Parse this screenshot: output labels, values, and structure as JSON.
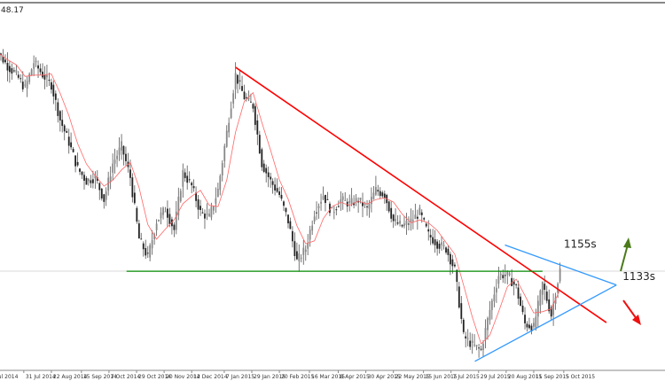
{
  "corner_label": "48.17",
  "colors": {
    "candle": "#222222",
    "wick": "#555555",
    "moving_average": "#ff6666",
    "downtrend": "#ff0000",
    "triangle": "#3399ff",
    "support": "#008800",
    "arrow_up": "#4a7a1a",
    "arrow_down": "#ee1111"
  },
  "chart_data": {
    "type": "candlestick",
    "title": "",
    "xlabel": "",
    "ylabel": "",
    "xlim": [
      "2014-07-12",
      "2015-11-25"
    ],
    "ylim": [
      1073,
      1355
    ],
    "grid": false,
    "x_tick_labels": [
      {
        "date": "2014-07-09",
        "label": "ul 2014"
      },
      {
        "date": "2014-07-31",
        "label": "31 Jul 2014"
      },
      {
        "date": "2014-08-22",
        "label": "22 Aug 2014"
      },
      {
        "date": "2014-09-15",
        "label": "15 Sep 2014"
      },
      {
        "date": "2014-10-07",
        "label": "7 Oct 2014"
      },
      {
        "date": "2014-10-29",
        "label": "29 Oct 2014"
      },
      {
        "date": "2014-11-20",
        "label": "20 Nov 2014"
      },
      {
        "date": "2014-12-12",
        "label": "12 Dec 2014"
      },
      {
        "date": "2015-01-07",
        "label": "7 Jan 2015"
      },
      {
        "date": "2015-01-29",
        "label": "29 Jan 2015"
      },
      {
        "date": "2015-02-20",
        "label": "20 Feb 2015"
      },
      {
        "date": "2015-03-16",
        "label": "16 Mar 2015"
      },
      {
        "date": "2015-04-08",
        "label": "8 Apr 2015"
      },
      {
        "date": "2015-04-30",
        "label": "30 Apr 2015"
      },
      {
        "date": "2015-05-22",
        "label": "22 May 2015"
      },
      {
        "date": "2015-06-15",
        "label": "15 Jun 2015"
      },
      {
        "date": "2015-07-07",
        "label": "7 Jul 2015"
      },
      {
        "date": "2015-07-29",
        "label": "29 Jul 2015"
      },
      {
        "date": "2015-08-20",
        "label": "20 Aug 2015"
      },
      {
        "date": "2015-09-11",
        "label": "11 Sep 2015"
      },
      {
        "date": "2015-10-05",
        "label": "5 Oct 2015"
      }
    ],
    "series": [
      {
        "dates": [
          "2014-07-11",
          "2014-07-18",
          "2014-07-25",
          "2014-08-01",
          "2014-08-08",
          "2014-08-15",
          "2014-08-22",
          "2014-08-29",
          "2014-09-05",
          "2014-09-12",
          "2014-09-19",
          "2014-09-26",
          "2014-10-03",
          "2014-10-10",
          "2014-10-17",
          "2014-10-24",
          "2014-10-31",
          "2014-11-07",
          "2014-11-14",
          "2014-11-21",
          "2014-11-28",
          "2014-12-05",
          "2014-12-12",
          "2014-12-19",
          "2014-12-26",
          "2015-01-02",
          "2015-01-09",
          "2015-01-16",
          "2015-01-23",
          "2015-01-30",
          "2015-02-06",
          "2015-02-13",
          "2015-02-20",
          "2015-02-27",
          "2015-03-06",
          "2015-03-13",
          "2015-03-20",
          "2015-03-27",
          "2015-04-03",
          "2015-04-10",
          "2015-04-17",
          "2015-04-24",
          "2015-05-01",
          "2015-05-08",
          "2015-05-15",
          "2015-05-22",
          "2015-05-29",
          "2015-06-05",
          "2015-06-12",
          "2015-06-19",
          "2015-06-26",
          "2015-07-03",
          "2015-07-10",
          "2015-07-17",
          "2015-07-24",
          "2015-07-31",
          "2015-08-07",
          "2015-08-14",
          "2015-08-21",
          "2015-08-28",
          "2015-09-04",
          "2015-09-11",
          "2015-09-18",
          "2015-09-25",
          "2015-10-02"
        ],
        "close": [
          1321,
          1311,
          1304,
          1293,
          1314,
          1304,
          1296,
          1268,
          1250,
          1229,
          1219,
          1222,
          1204,
          1233,
          1247,
          1222,
          1173,
          1158,
          1187,
          1197,
          1180,
          1226,
          1215,
          1194,
          1190,
          1212,
          1258,
          1304,
          1286,
          1279,
          1233,
          1219,
          1208,
          1187,
          1155,
          1165,
          1194,
          1208,
          1194,
          1204,
          1201,
          1204,
          1197,
          1212,
          1208,
          1187,
          1183,
          1187,
          1194,
          1176,
          1169,
          1165,
          1148,
          1095,
          1088,
          1084,
          1116,
          1144,
          1144,
          1134,
          1105,
          1102,
          1137,
          1112,
          1148
        ]
      }
    ],
    "moving_average": true,
    "lines": [
      {
        "name": "downtrend",
        "from": [
          "2015-01-16",
          1310
        ],
        "to": [
          "2015-11-08",
          1106
        ]
      },
      {
        "name": "triangle-upper",
        "from": [
          "2015-08-19",
          1168
        ],
        "to": [
          "2015-11-16",
          1136
        ]
      },
      {
        "name": "triangle-lower",
        "from": [
          "2015-07-26",
          1075
        ],
        "to": [
          "2015-11-16",
          1136
        ]
      },
      {
        "name": "support",
        "from": [
          "2014-10-21",
          1147
        ],
        "to": [
          "2015-09-18",
          1147
        ]
      }
    ],
    "annotations": [
      {
        "text": "1155s",
        "date": "2015-10-05",
        "price": 1166
      },
      {
        "text": "1133s",
        "date": "2015-11-21",
        "price": 1140
      }
    ]
  }
}
